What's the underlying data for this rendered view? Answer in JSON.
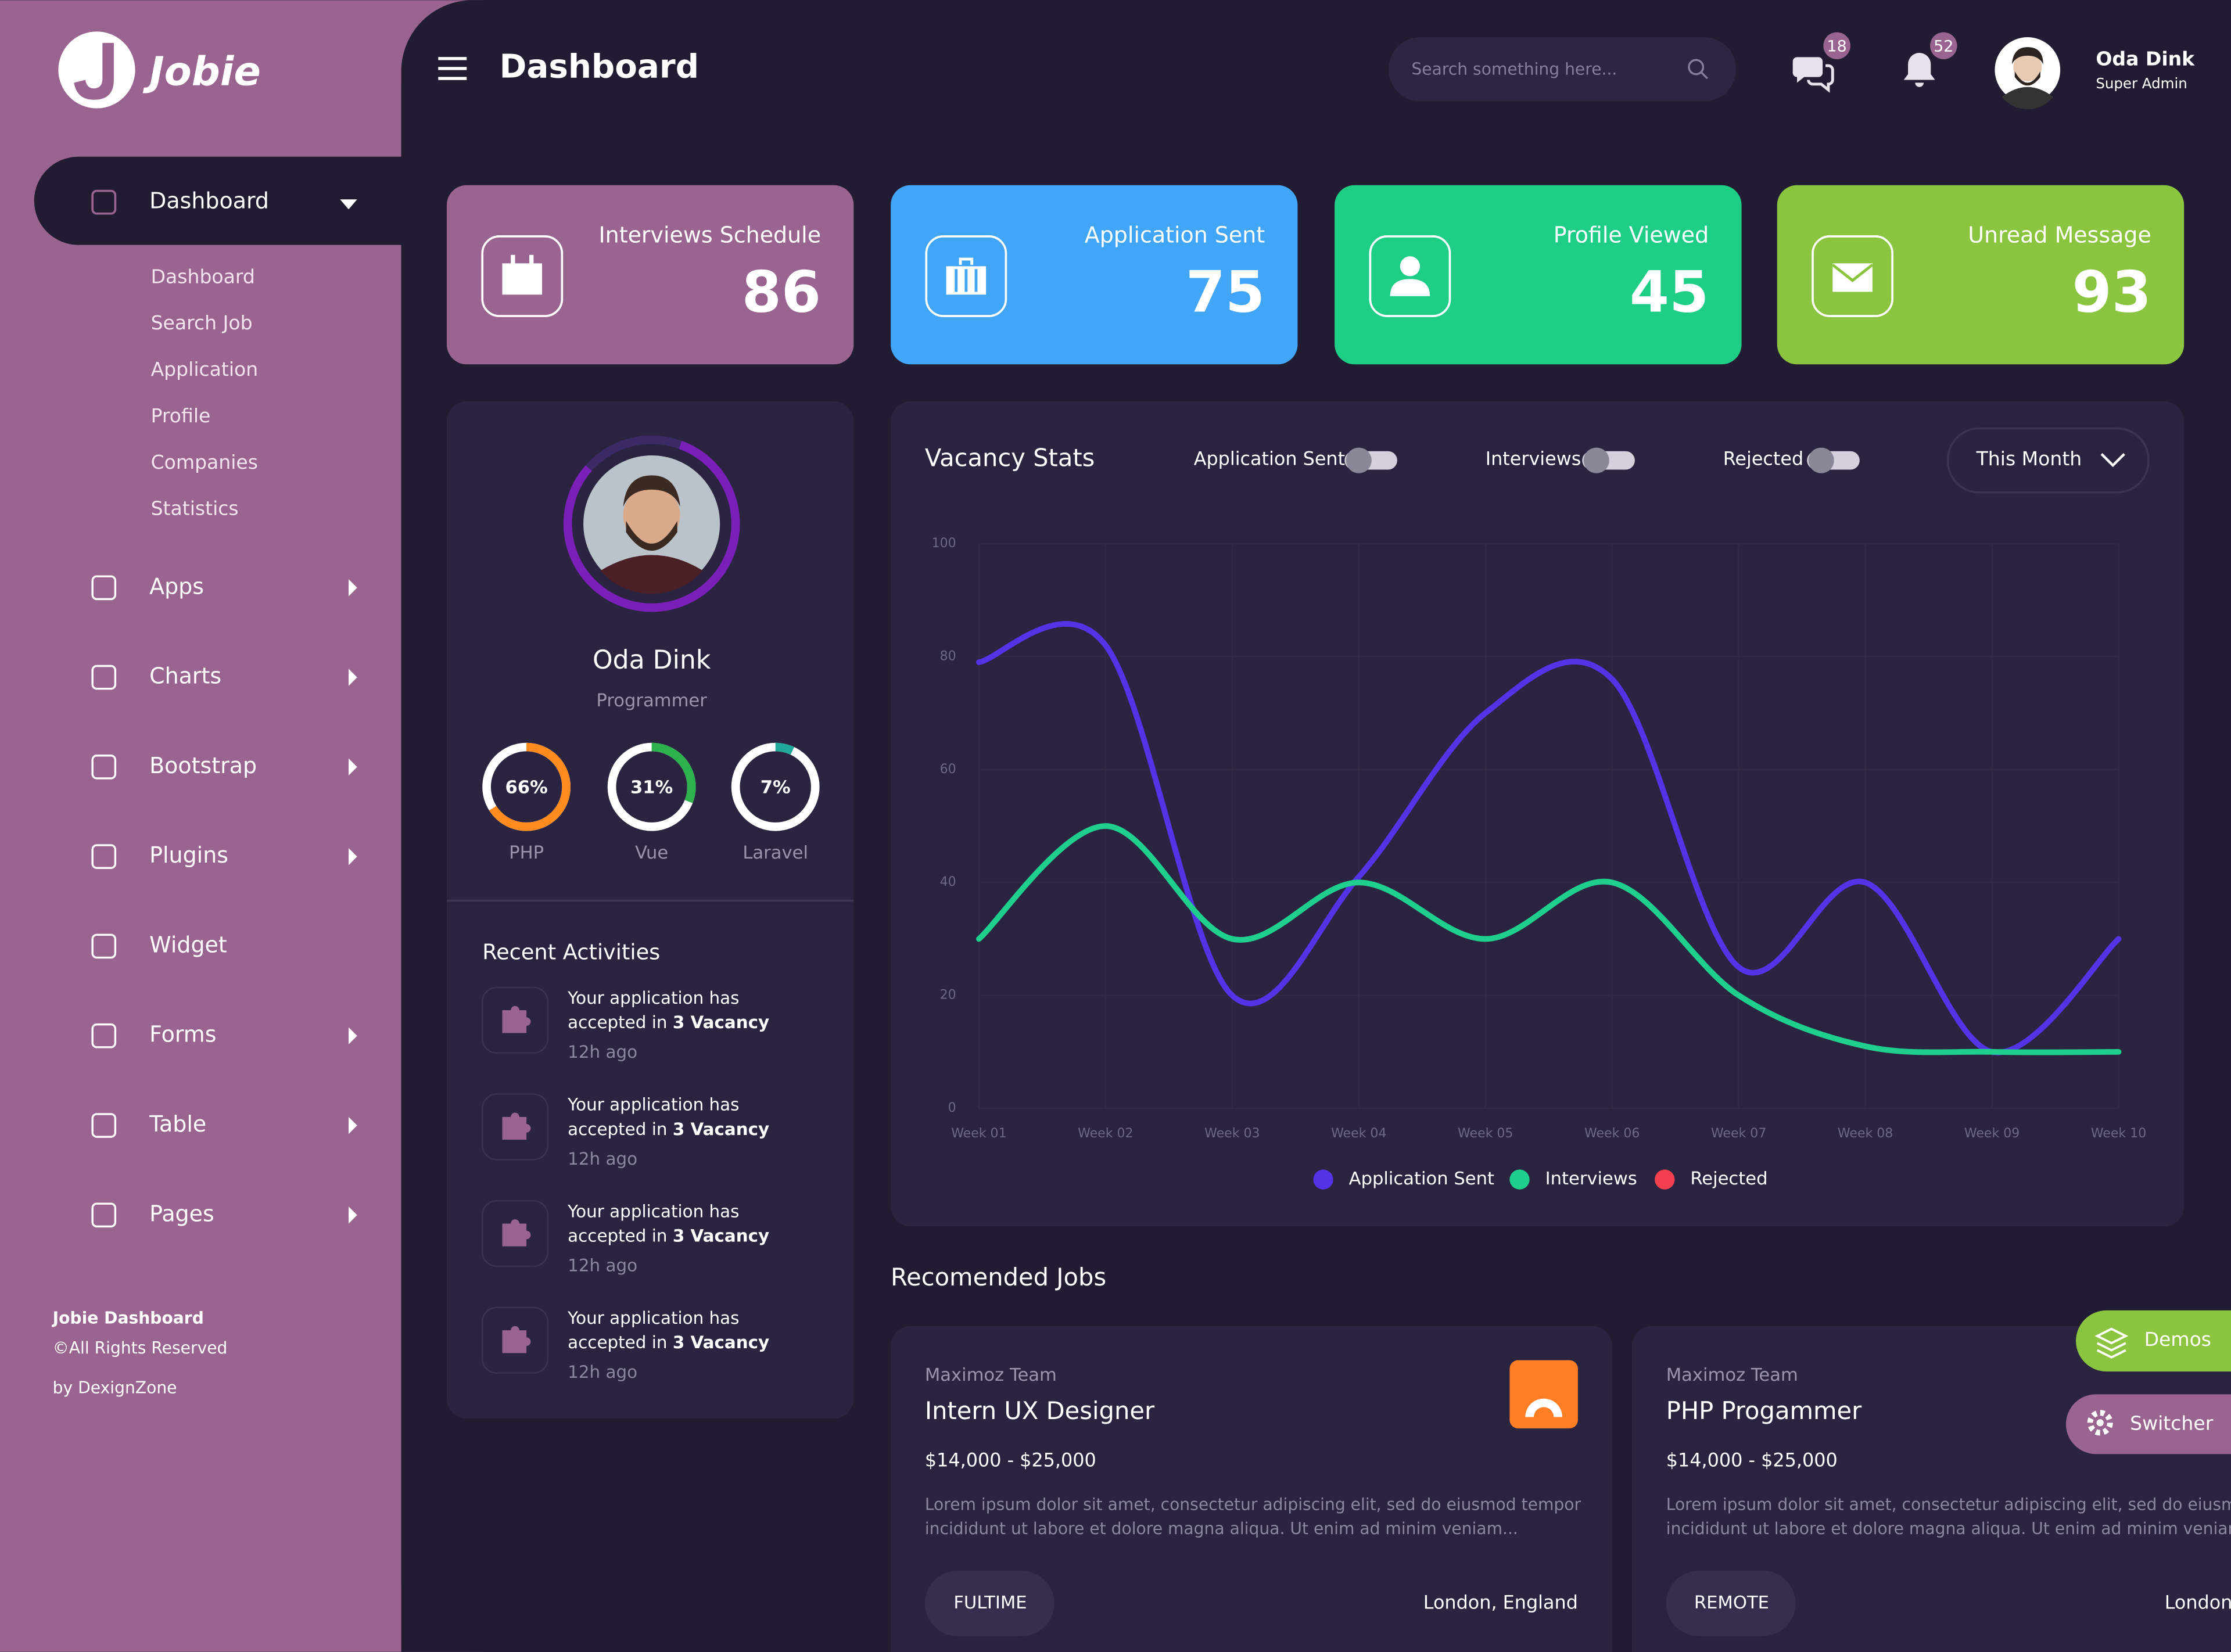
{
  "sidebar": {
    "brand": "Jobie",
    "active": "Dashboard",
    "submenu": [
      "Dashboard",
      "Search Job",
      "Application",
      "Profile",
      "Companies",
      "Statistics"
    ],
    "menu": [
      {
        "label": "Apps",
        "arrow": true
      },
      {
        "label": "Charts",
        "arrow": true
      },
      {
        "label": "Bootstrap",
        "arrow": true
      },
      {
        "label": "Plugins",
        "arrow": true
      },
      {
        "label": "Widget",
        "arrow": false
      },
      {
        "label": "Forms",
        "arrow": true
      },
      {
        "label": "Table",
        "arrow": true
      },
      {
        "label": "Pages",
        "arrow": true
      }
    ],
    "footer": {
      "title": "Jobie Dashboard",
      "rights": "©All Rights Reserved",
      "credit": "by DexignZone"
    }
  },
  "header": {
    "title": "Dashboard",
    "search_placeholder": "Search something here...",
    "messages": 18,
    "notifications": 52,
    "user": {
      "name": "Oda Dink",
      "role": "Super Admin"
    }
  },
  "stats": [
    {
      "title": "Interviews Schedule",
      "value": 86,
      "color": "#9a6491"
    },
    {
      "title": "Application Sent",
      "value": 75,
      "color": "#42a6f8"
    },
    {
      "title": "Profile Viewed",
      "value": 45,
      "color": "#1fce86"
    },
    {
      "title": "Unread Message",
      "value": 93,
      "color": "#8bc540"
    }
  ],
  "profile": {
    "name": "Oda Dink",
    "role": "Programmer",
    "skills": [
      {
        "name": "PHP",
        "value": 66,
        "label": "66%",
        "color": "#ff8a1e"
      },
      {
        "name": "Vue",
        "value": 31,
        "label": "31%",
        "color": "#2bb24c"
      },
      {
        "name": "Laravel",
        "value": 7,
        "label": "7%",
        "color": "#20a89a"
      }
    ],
    "activities_title": "Recent Activities",
    "activities": [
      {
        "line1": "Your application has",
        "line2": "accepted in ",
        "highlight": "3 Vacancy",
        "time": "12h ago"
      },
      {
        "line1": "Your application has",
        "line2": "accepted in ",
        "highlight": "3 Vacancy",
        "time": "12h ago"
      },
      {
        "line1": "Your application has",
        "line2": "accepted in ",
        "highlight": "3 Vacancy",
        "time": "12h ago"
      },
      {
        "line1": "Your application has",
        "line2": "accepted in ",
        "highlight": "3 Vacancy",
        "time": "12h ago"
      }
    ]
  },
  "chart_data": {
    "type": "line",
    "title": "Vacancy Stats",
    "period": "This Month",
    "smooth": true,
    "categories": [
      "Week 01",
      "Week 02",
      "Week 03",
      "Week 04",
      "Week 05",
      "Week 06",
      "Week 07",
      "Week 08",
      "Week 09",
      "Week 10"
    ],
    "series": [
      {
        "name": "Application Sent",
        "color": "#5233e6",
        "values": [
          79,
          82,
          20,
          41,
          70,
          76,
          25,
          40,
          10,
          30
        ]
      },
      {
        "name": "Interviews",
        "color": "#1fcf8d",
        "values": [
          30,
          50,
          30,
          40,
          30,
          40,
          20,
          11,
          10,
          10
        ]
      },
      {
        "name": "Rejected",
        "color": "#f5414f",
        "values": [
          null,
          null,
          null,
          null,
          null,
          null,
          null,
          null,
          null,
          null
        ]
      }
    ],
    "ylim": [
      0,
      100
    ],
    "yticks": [
      0,
      20,
      40,
      60,
      80,
      100
    ],
    "grid": true
  },
  "jobs": {
    "title": "Recomended Jobs",
    "items": [
      {
        "company": "Maximoz Team",
        "title": "Intern UX Designer",
        "salary": "$14,000 - $25,000",
        "description": [
          "Lorem ipsum dolor sit amet, consectetur adipiscing elit, sed do eiusmod tempor",
          "incididunt ut labore et dolore magna aliqua. Ut enim ad minim veniam..."
        ],
        "type": "FULTIME",
        "location": "London, England"
      },
      {
        "company": "Maximoz Team",
        "title": "PHP Progammer",
        "salary": "$14,000 - $25,000",
        "description": [
          "Lorem ipsum dolor sit amet, consectetur adipiscing elit, sed do eiusmod tempor",
          "incididunt ut labore et dolore magna aliqua. Ut enim ad minim veniam..."
        ],
        "type": "REMOTE",
        "location": "London, England"
      }
    ]
  },
  "floating": {
    "demos": "Demos",
    "switcher": "Switcher"
  }
}
